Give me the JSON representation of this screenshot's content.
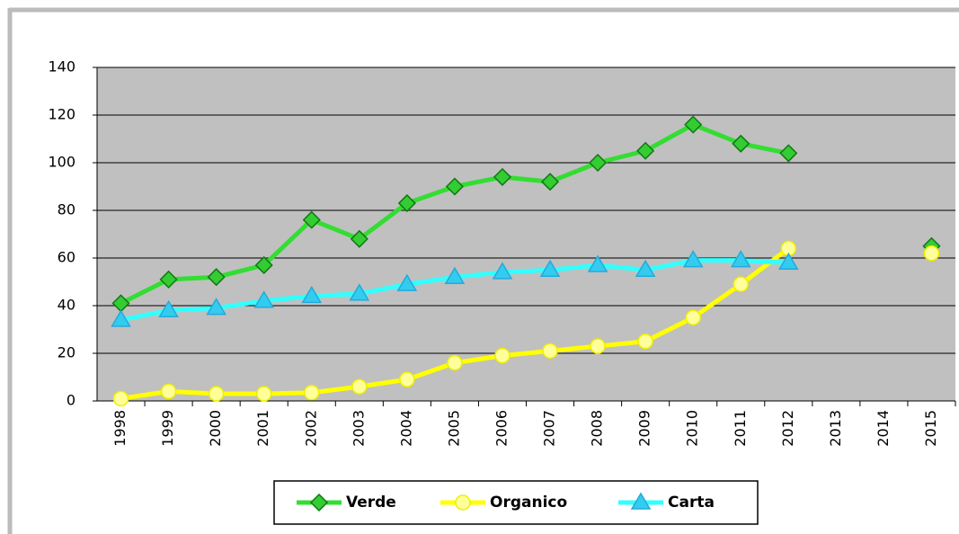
{
  "chart_data": {
    "type": "line",
    "categories": [
      "1998",
      "1999",
      "2000",
      "2001",
      "2002",
      "2003",
      "2004",
      "2005",
      "2006",
      "2007",
      "2008",
      "2009",
      "2010",
      "2011",
      "2012",
      "2013",
      "2014",
      "2015"
    ],
    "series": [
      {
        "name": "Verde",
        "color": "#33dd33",
        "marker": "diamond",
        "marker_fill": "#33cc33",
        "marker_stroke": "#117711",
        "values": [
          41,
          51,
          52,
          57,
          76,
          68,
          83,
          90,
          94,
          92,
          100,
          105,
          116,
          108,
          104,
          null,
          null,
          65
        ]
      },
      {
        "name": "Organico",
        "color": "#ffff00",
        "marker": "circle",
        "marker_fill": "#ffff99",
        "marker_stroke": "#eeee00",
        "values": [
          1,
          4,
          3,
          3,
          3.5,
          6,
          9,
          16,
          19,
          21,
          23,
          25,
          35,
          49,
          64,
          null,
          null,
          62
        ]
      },
      {
        "name": "Carta",
        "color": "#33ffff",
        "marker": "triangle",
        "marker_fill": "#33ccee",
        "marker_stroke": "#22aadd",
        "values": [
          34,
          38,
          39,
          42,
          44,
          45,
          49,
          52,
          54,
          55,
          57,
          55,
          59,
          59,
          58,
          null,
          null,
          null
        ]
      }
    ],
    "ylim": [
      0,
      140
    ],
    "yticks": [
      0,
      20,
      40,
      60,
      80,
      100,
      120,
      140
    ],
    "grid": true,
    "legend": "bottom"
  }
}
